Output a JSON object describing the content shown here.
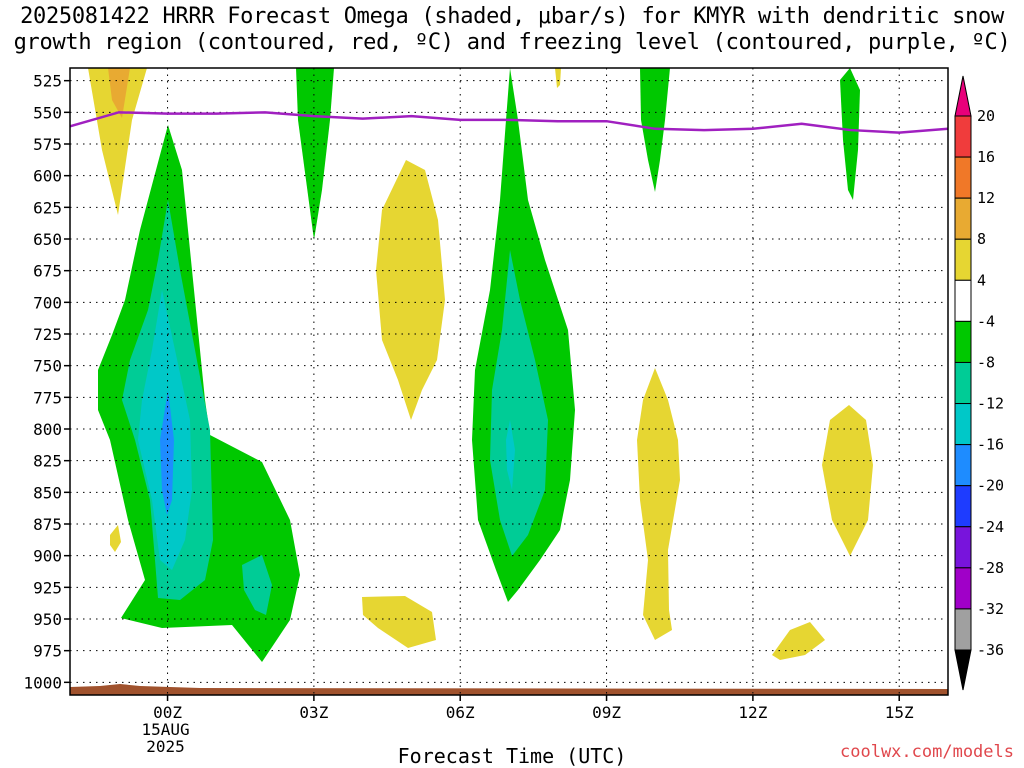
{
  "chart_data": {
    "type": "contour",
    "title": "2025081422 HRRR Forecast Omega (shaded, μbar/s) for KMYR with dendritic snow\ngrowth region (contoured, red, ºC) and freezing level (contoured, purple, ºC)",
    "xlabel": "Forecast Time (UTC)",
    "ylabel": "",
    "credit": "coolwx.com/models",
    "x_ticks": [
      {
        "label": "00Z",
        "sub1": "15AUG",
        "sub2": "2025",
        "hour": 2
      },
      {
        "label": "03Z",
        "sub1": "",
        "sub2": "",
        "hour": 5
      },
      {
        "label": "06Z",
        "sub1": "",
        "sub2": "",
        "hour": 8
      },
      {
        "label": "09Z",
        "sub1": "",
        "sub2": "",
        "hour": 11
      },
      {
        "label": "12Z",
        "sub1": "",
        "sub2": "",
        "hour": 14
      },
      {
        "label": "15Z",
        "sub1": "",
        "sub2": "",
        "hour": 17
      }
    ],
    "x_range_hours": [
      0,
      18
    ],
    "y_ticks": [
      525,
      550,
      575,
      600,
      625,
      650,
      675,
      700,
      725,
      750,
      775,
      800,
      825,
      850,
      875,
      900,
      925,
      950,
      975,
      1000
    ],
    "y_range": [
      515,
      1010
    ],
    "grid": true,
    "colorbar": {
      "levels": [
        "20",
        "16",
        "12",
        "8",
        "4",
        "-4",
        "-8",
        "-12",
        "-16",
        "-20",
        "-24",
        "-28",
        "-32",
        "-36"
      ],
      "colors": [
        "#e8007a",
        "#f03c3c",
        "#f07828",
        "#e8aa32",
        "#e6d632",
        "#ffffff",
        "#00c800",
        "#00cc96",
        "#00c8c8",
        "#1e8cff",
        "#1e3cff",
        "#7814dc",
        "#a000c8",
        "#a0a0a0",
        "#000000"
      ]
    },
    "freezing_level": {
      "name": "freezing level",
      "color": "#a020c0",
      "x": [
        0,
        1,
        2,
        3,
        4,
        5,
        6,
        7,
        8,
        9,
        10,
        11,
        12,
        13,
        14,
        15,
        16,
        17,
        18
      ],
      "y": [
        561,
        550,
        551,
        551,
        550,
        553,
        555,
        553,
        556,
        556,
        557,
        557,
        563,
        564,
        563,
        559,
        564,
        566,
        563
      ]
    }
  }
}
